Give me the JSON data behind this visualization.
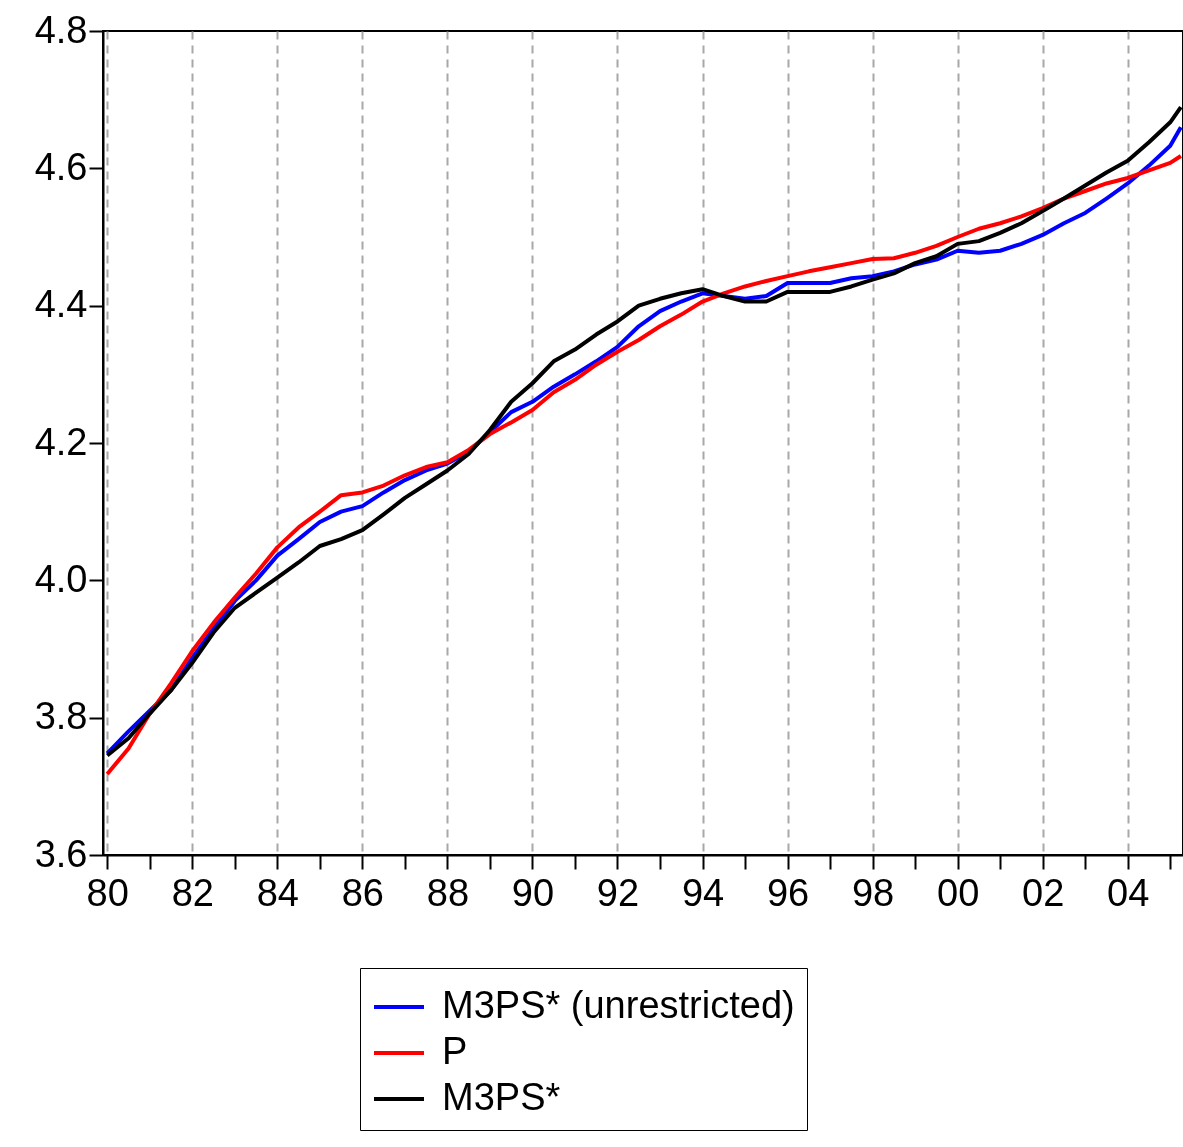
{
  "chart_data": {
    "type": "line",
    "x": [
      1980,
      1980.5,
      1981,
      1981.5,
      1982,
      1982.5,
      1983,
      1983.5,
      1984,
      1984.5,
      1985,
      1985.5,
      1986,
      1986.5,
      1987,
      1987.5,
      1988,
      1988.5,
      1989,
      1989.5,
      1990,
      1990.5,
      1991,
      1991.5,
      1992,
      1992.5,
      1993,
      1993.5,
      1994,
      1994.5,
      1995,
      1995.5,
      1996,
      1996.5,
      1997,
      1997.5,
      1998,
      1998.5,
      1999,
      1999.5,
      2000,
      2000.5,
      2001,
      2001.5,
      2002,
      2002.5,
      2003,
      2003.5,
      2004,
      2004.5,
      2005,
      2005.25
    ],
    "series": [
      {
        "name": "M3PS* (unrestricted)",
        "color": "#0000ff",
        "values": [
          3.748,
          3.78,
          3.81,
          3.84,
          3.887,
          3.93,
          3.97,
          4.0,
          4.036,
          4.06,
          4.085,
          4.1,
          4.108,
          4.128,
          4.146,
          4.16,
          4.17,
          4.187,
          4.216,
          4.245,
          4.26,
          4.282,
          4.3,
          4.319,
          4.34,
          4.37,
          4.392,
          4.406,
          4.418,
          4.414,
          4.41,
          4.414,
          4.433,
          4.433,
          4.433,
          4.44,
          4.443,
          4.45,
          4.46,
          4.467,
          4.48,
          4.477,
          4.48,
          4.49,
          4.503,
          4.52,
          4.535,
          4.556,
          4.578,
          4.604,
          4.633,
          4.66
        ]
      },
      {
        "name": "P",
        "color": "#ff0000",
        "values": [
          3.718,
          3.755,
          3.806,
          3.85,
          3.897,
          3.938,
          3.975,
          4.01,
          4.048,
          4.077,
          4.1,
          4.124,
          4.128,
          4.138,
          4.153,
          4.165,
          4.172,
          4.19,
          4.213,
          4.23,
          4.248,
          4.274,
          4.292,
          4.314,
          4.333,
          4.35,
          4.37,
          4.387,
          4.406,
          4.418,
          4.428,
          4.436,
          4.443,
          4.45,
          4.456,
          4.462,
          4.468,
          4.469,
          4.477,
          4.487,
          4.5,
          4.512,
          4.52,
          4.53,
          4.542,
          4.556,
          4.567,
          4.578,
          4.586,
          4.597,
          4.608,
          4.618
        ]
      },
      {
        "name": "M3PS*",
        "color": "#000000",
        "values": [
          3.745,
          3.77,
          3.806,
          3.84,
          3.88,
          3.924,
          3.96,
          3.982,
          4.004,
          4.026,
          4.05,
          4.06,
          4.073,
          4.096,
          4.12,
          4.14,
          4.16,
          4.184,
          4.219,
          4.26,
          4.287,
          4.319,
          4.336,
          4.358,
          4.377,
          4.4,
          4.41,
          4.418,
          4.424,
          4.414,
          4.406,
          4.406,
          4.42,
          4.42,
          4.42,
          4.428,
          4.438,
          4.447,
          4.462,
          4.472,
          4.49,
          4.494,
          4.506,
          4.52,
          4.538,
          4.556,
          4.575,
          4.594,
          4.611,
          4.638,
          4.667,
          4.689
        ]
      }
    ],
    "xlim": [
      1979.9,
      2005.3
    ],
    "xticks": [
      {
        "value": 1980,
        "label": "80"
      },
      {
        "value": 1981,
        "label": null
      },
      {
        "value": 1982,
        "label": "82"
      },
      {
        "value": 1983,
        "label": null
      },
      {
        "value": 1984,
        "label": "84"
      },
      {
        "value": 1985,
        "label": null
      },
      {
        "value": 1986,
        "label": "86"
      },
      {
        "value": 1987,
        "label": null
      },
      {
        "value": 1988,
        "label": "88"
      },
      {
        "value": 1989,
        "label": null
      },
      {
        "value": 1990,
        "label": "90"
      },
      {
        "value": 1991,
        "label": null
      },
      {
        "value": 1992,
        "label": "92"
      },
      {
        "value": 1993,
        "label": null
      },
      {
        "value": 1994,
        "label": "94"
      },
      {
        "value": 1995,
        "label": null
      },
      {
        "value": 1996,
        "label": "96"
      },
      {
        "value": 1997,
        "label": null
      },
      {
        "value": 1998,
        "label": "98"
      },
      {
        "value": 1999,
        "label": null
      },
      {
        "value": 2000,
        "label": "00"
      },
      {
        "value": 2001,
        "label": null
      },
      {
        "value": 2002,
        "label": "02"
      },
      {
        "value": 2003,
        "label": null
      },
      {
        "value": 2004,
        "label": "04"
      },
      {
        "value": 2005,
        "label": null
      }
    ],
    "ylim": [
      3.6,
      4.8
    ],
    "yticks": [
      3.6,
      3.8,
      {
        "value": 4,
        "label": "4.0"
      },
      4.2,
      4.4,
      4.6,
      4.8
    ],
    "grid": "x",
    "legend": "bottom",
    "line_style": "solid"
  }
}
